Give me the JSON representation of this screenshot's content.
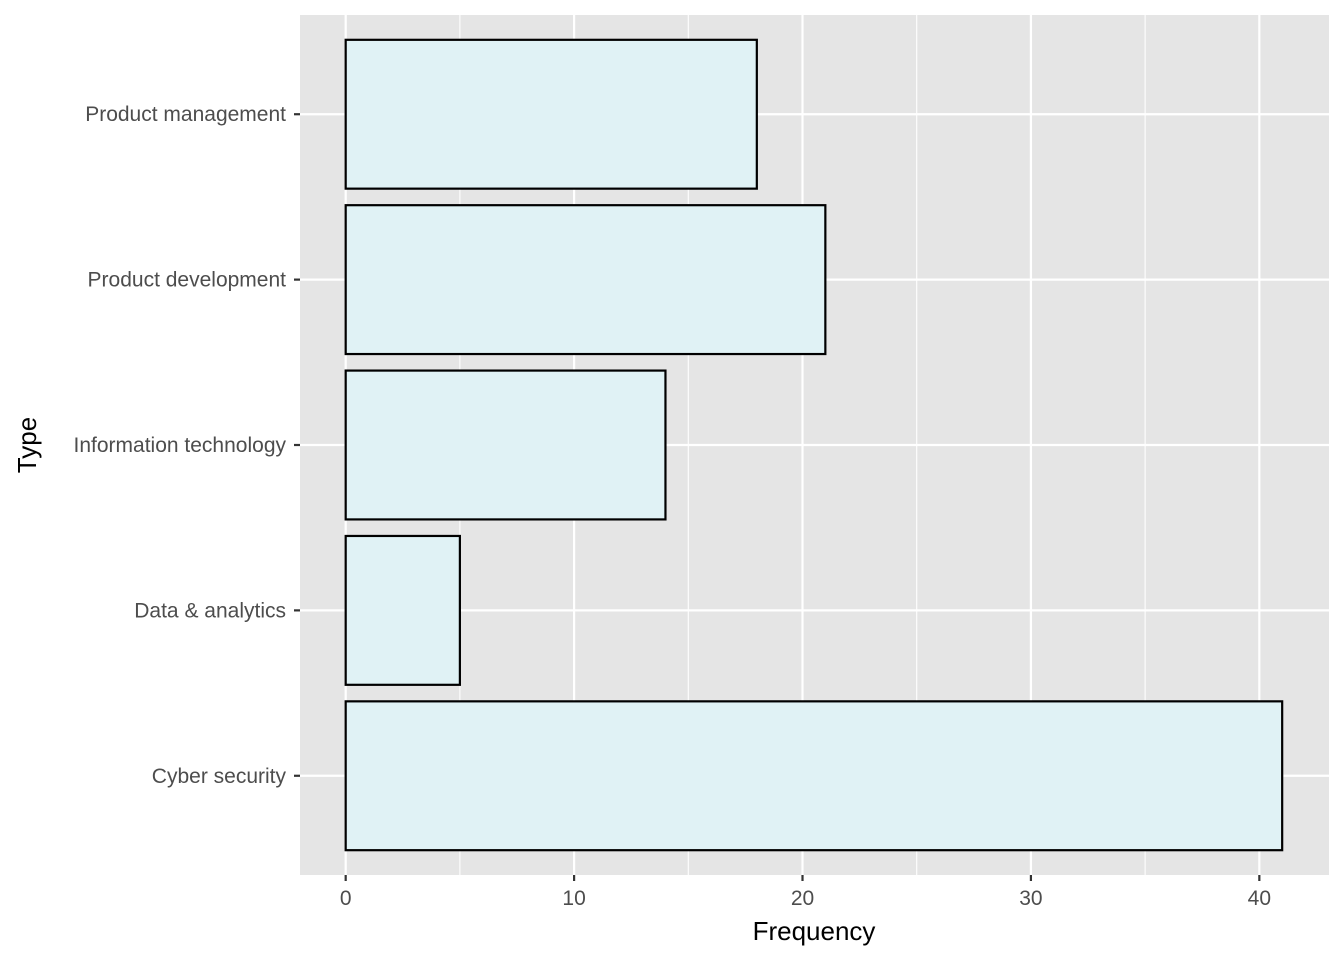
{
  "chart_data": {
    "type": "bar",
    "orientation": "horizontal",
    "categories": [
      "Cyber security",
      "Data & analytics",
      "Information technology",
      "Product development",
      "Product management"
    ],
    "values": [
      41,
      5,
      14,
      21,
      18
    ],
    "xlabel": "Frequency",
    "ylabel": "Type",
    "xlim": [
      -2,
      43.05
    ],
    "xticks": [
      0,
      10,
      20,
      30,
      40
    ],
    "grid": true,
    "colors": {
      "panel_background": "#e5e5e5",
      "grid_major": "#ffffff",
      "bar_fill": "#e0f2f5",
      "bar_outline": "#000000",
      "tick_text": "#4d4d4d"
    }
  }
}
